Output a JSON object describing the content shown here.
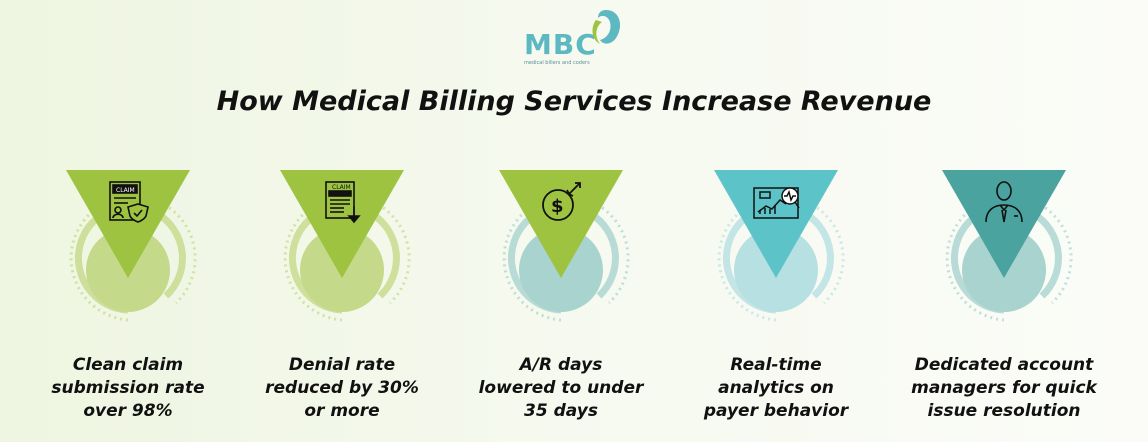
{
  "logo": {
    "text": "MBC",
    "tagline": "medical billers and coders"
  },
  "title": "How Medical Billing Services Increase Revenue",
  "colors": {
    "green_dark": "#9dc340",
    "green_light": "#c5d98a",
    "teal_light": "#5cc4c9",
    "teal_dark": "#4aa39f",
    "text": "#111111"
  },
  "cards": [
    {
      "icon": "claim-form-icon",
      "lines": [
        "Clean claim",
        "submission rate",
        "over 98%"
      ]
    },
    {
      "icon": "claim-download-icon",
      "lines": [
        "Denial rate",
        "reduced by 30%",
        "or more"
      ]
    },
    {
      "icon": "dollar-coin-icon",
      "lines": [
        "A/R days",
        "lowered to under",
        "35 days"
      ]
    },
    {
      "icon": "analytics-chart-icon",
      "lines": [
        "Real-time",
        "analytics on",
        "payer behavior"
      ]
    },
    {
      "icon": "account-manager-icon",
      "lines": [
        "Dedicated account",
        "managers for quick",
        "issue resolution"
      ]
    }
  ]
}
